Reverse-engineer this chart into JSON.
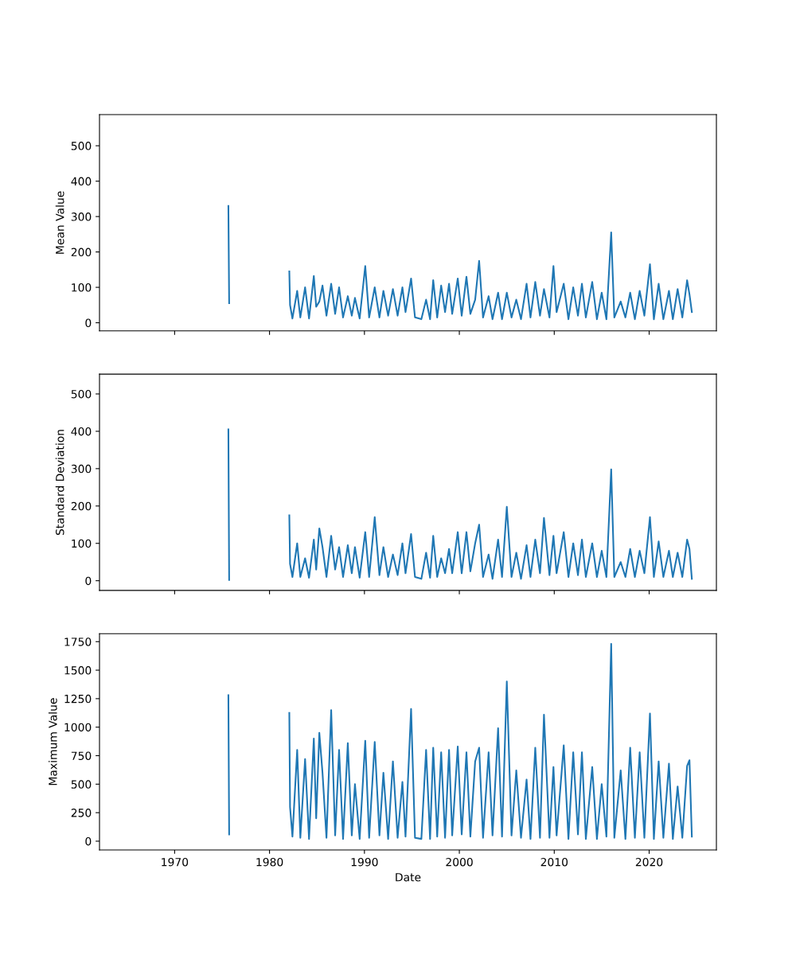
{
  "chart_data": [
    {
      "type": "line",
      "ylabel": "Mean Value",
      "tick_labels": "y",
      "xlim": [
        "1962-02",
        "2027-02"
      ],
      "xticks": [
        "1970",
        "1980",
        "1990",
        "2000",
        "2010",
        "2020"
      ],
      "ylim": [
        -23,
        588
      ],
      "yticks": [
        0,
        100,
        200,
        300,
        400,
        500
      ],
      "x": [
        "1975-09",
        "1975-10",
        "1979-01",
        "1982-02",
        "1982-03",
        "1982-06",
        "1982-12",
        "1983-04",
        "1983-10",
        "1984-03",
        "1984-09",
        "1984-12",
        "1985-04",
        "1985-08",
        "1986-01",
        "1986-07",
        "1986-12",
        "1987-05",
        "1987-10",
        "1988-04",
        "1988-09",
        "1989-01",
        "1989-07",
        "1990-02",
        "1990-07",
        "1991-02",
        "1991-08",
        "1992-01",
        "1992-07",
        "1993-01",
        "1993-07",
        "1994-01",
        "1994-05",
        "1994-12",
        "1995-05",
        "1996-01",
        "1996-07",
        "1996-12",
        "1997-04",
        "1997-09",
        "1998-02",
        "1998-07",
        "1998-12",
        "1999-04",
        "1999-11",
        "2000-04",
        "2000-10",
        "2001-03",
        "2001-09",
        "2002-02",
        "2002-07",
        "2003-02",
        "2003-07",
        "2004-02",
        "2004-07",
        "2005-01",
        "2005-07",
        "2006-01",
        "2006-07",
        "2007-02",
        "2007-07",
        "2008-01",
        "2008-07",
        "2008-12",
        "2009-07",
        "2009-12",
        "2010-04",
        "2011-01",
        "2011-07",
        "2012-01",
        "2012-07",
        "2012-12",
        "2013-05",
        "2014-01",
        "2014-07",
        "2015-01",
        "2015-07",
        "2016-01",
        "2016-05",
        "2017-01",
        "2017-07",
        "2018-01",
        "2018-07",
        "2019-01",
        "2019-07",
        "2020-02",
        "2020-07",
        "2021-01",
        "2021-07",
        "2022-02",
        "2022-07",
        "2023-01",
        "2023-07",
        "2024-01",
        "2024-04",
        "2024-07"
      ],
      "series": [
        {
          "color": "#1f77b4",
          "values": [
            330,
            55,
            null,
            145,
            50,
            12,
            90,
            15,
            100,
            12,
            132,
            45,
            60,
            105,
            20,
            110,
            25,
            100,
            15,
            75,
            20,
            70,
            12,
            160,
            15,
            100,
            15,
            90,
            20,
            95,
            20,
            100,
            30,
            125,
            15,
            10,
            65,
            10,
            120,
            15,
            105,
            30,
            110,
            25,
            125,
            20,
            130,
            25,
            65,
            175,
            15,
            75,
            10,
            85,
            10,
            85,
            15,
            65,
            10,
            110,
            15,
            115,
            20,
            95,
            15,
            160,
            30,
            110,
            10,
            100,
            20,
            110,
            15,
            115,
            10,
            85,
            10,
            255,
            15,
            60,
            15,
            85,
            10,
            90,
            20,
            165,
            10,
            110,
            10,
            90,
            10,
            95,
            15,
            120,
            80,
            30
          ]
        }
      ]
    },
    {
      "type": "line",
      "ylabel": "Standard Deviation",
      "tick_labels": "y",
      "xlim": [
        "1962-02",
        "2027-02"
      ],
      "xticks": [
        "1970",
        "1980",
        "1990",
        "2000",
        "2010",
        "2020"
      ],
      "ylim": [
        -26,
        553
      ],
      "yticks": [
        0,
        100,
        200,
        300,
        400,
        500
      ],
      "x": [
        "1975-09",
        "1975-10",
        "1979-01",
        "1982-02",
        "1982-03",
        "1982-06",
        "1982-12",
        "1983-04",
        "1983-10",
        "1984-03",
        "1984-09",
        "1984-12",
        "1985-04",
        "1985-08",
        "1986-01",
        "1986-07",
        "1986-12",
        "1987-05",
        "1987-10",
        "1988-04",
        "1988-09",
        "1989-01",
        "1989-07",
        "1990-02",
        "1990-07",
        "1991-02",
        "1991-08",
        "1992-01",
        "1992-07",
        "1993-01",
        "1993-07",
        "1994-01",
        "1994-05",
        "1994-12",
        "1995-05",
        "1996-01",
        "1996-07",
        "1996-12",
        "1997-04",
        "1997-09",
        "1998-02",
        "1998-07",
        "1998-12",
        "1999-04",
        "1999-11",
        "2000-04",
        "2000-10",
        "2001-03",
        "2001-09",
        "2002-02",
        "2002-07",
        "2003-02",
        "2003-07",
        "2004-02",
        "2004-07",
        "2005-01",
        "2005-07",
        "2006-01",
        "2006-07",
        "2007-02",
        "2007-07",
        "2008-01",
        "2008-07",
        "2008-12",
        "2009-07",
        "2009-12",
        "2010-04",
        "2011-01",
        "2011-07",
        "2012-01",
        "2012-07",
        "2012-12",
        "2013-05",
        "2014-01",
        "2014-07",
        "2015-01",
        "2015-07",
        "2016-01",
        "2016-05",
        "2017-01",
        "2017-07",
        "2018-01",
        "2018-07",
        "2019-01",
        "2019-07",
        "2020-02",
        "2020-07",
        "2021-01",
        "2021-07",
        "2022-02",
        "2022-07",
        "2023-01",
        "2023-07",
        "2024-01",
        "2024-04",
        "2024-07"
      ],
      "series": [
        {
          "color": "#1f77b4",
          "values": [
            405,
            2,
            null,
            175,
            45,
            10,
            100,
            10,
            60,
            8,
            110,
            30,
            140,
            90,
            10,
            120,
            30,
            90,
            10,
            95,
            20,
            90,
            8,
            130,
            10,
            170,
            15,
            90,
            10,
            70,
            15,
            100,
            20,
            125,
            10,
            5,
            75,
            8,
            120,
            10,
            60,
            20,
            85,
            20,
            130,
            20,
            130,
            25,
            100,
            150,
            10,
            70,
            5,
            110,
            10,
            198,
            10,
            75,
            5,
            95,
            10,
            110,
            20,
            168,
            15,
            120,
            20,
            130,
            10,
            100,
            15,
            110,
            10,
            100,
            10,
            80,
            10,
            298,
            10,
            50,
            10,
            85,
            10,
            80,
            20,
            170,
            10,
            105,
            10,
            80,
            10,
            75,
            10,
            110,
            85,
            5
          ]
        }
      ]
    },
    {
      "type": "line",
      "ylabel": "Maximum Value",
      "xlabel": "Date",
      "xlim": [
        "1962-02",
        "2027-02"
      ],
      "xticks": [
        "1970",
        "1980",
        "1990",
        "2000",
        "2010",
        "2020"
      ],
      "ylim": [
        -77,
        1820
      ],
      "yticks": [
        0,
        250,
        500,
        750,
        1000,
        1250,
        1500,
        1750
      ],
      "x": [
        "1975-09",
        "1975-10",
        "1979-01",
        "1982-02",
        "1982-03",
        "1982-06",
        "1982-12",
        "1983-04",
        "1983-10",
        "1984-03",
        "1984-09",
        "1984-12",
        "1985-04",
        "1985-08",
        "1986-01",
        "1986-07",
        "1986-12",
        "1987-05",
        "1987-10",
        "1988-04",
        "1988-09",
        "1989-01",
        "1989-07",
        "1990-02",
        "1990-07",
        "1991-02",
        "1991-08",
        "1992-01",
        "1992-07",
        "1993-01",
        "1993-07",
        "1994-01",
        "1994-05",
        "1994-12",
        "1995-05",
        "1996-01",
        "1996-07",
        "1996-12",
        "1997-04",
        "1997-09",
        "1998-02",
        "1998-07",
        "1998-12",
        "1999-04",
        "1999-11",
        "2000-04",
        "2000-10",
        "2001-03",
        "2001-09",
        "2002-02",
        "2002-07",
        "2003-02",
        "2003-07",
        "2004-02",
        "2004-07",
        "2005-01",
        "2005-07",
        "2006-01",
        "2006-07",
        "2007-02",
        "2007-07",
        "2008-01",
        "2008-07",
        "2008-12",
        "2009-07",
        "2009-12",
        "2010-04",
        "2011-01",
        "2011-07",
        "2012-01",
        "2012-07",
        "2012-12",
        "2013-05",
        "2014-01",
        "2014-07",
        "2015-01",
        "2015-07",
        "2016-01",
        "2016-05",
        "2017-01",
        "2017-07",
        "2018-01",
        "2018-07",
        "2019-01",
        "2019-07",
        "2020-02",
        "2020-07",
        "2021-01",
        "2021-07",
        "2022-02",
        "2022-07",
        "2023-01",
        "2023-07",
        "2024-01",
        "2024-04",
        "2024-07"
      ],
      "series": [
        {
          "color": "#1f77b4",
          "values": [
            1280,
            60,
            null,
            1125,
            300,
            40,
            800,
            30,
            720,
            20,
            900,
            200,
            950,
            600,
            30,
            1150,
            50,
            800,
            20,
            860,
            50,
            500,
            20,
            880,
            30,
            870,
            50,
            600,
            20,
            700,
            30,
            520,
            40,
            1160,
            30,
            20,
            800,
            20,
            820,
            40,
            780,
            30,
            800,
            50,
            830,
            60,
            780,
            40,
            700,
            820,
            30,
            780,
            50,
            990,
            40,
            1400,
            50,
            620,
            30,
            540,
            20,
            820,
            30,
            1110,
            30,
            650,
            50,
            840,
            20,
            780,
            60,
            780,
            20,
            650,
            20,
            500,
            40,
            1730,
            30,
            620,
            20,
            820,
            30,
            780,
            30,
            1120,
            20,
            700,
            30,
            680,
            20,
            480,
            30,
            660,
            710,
            40
          ]
        }
      ]
    }
  ]
}
